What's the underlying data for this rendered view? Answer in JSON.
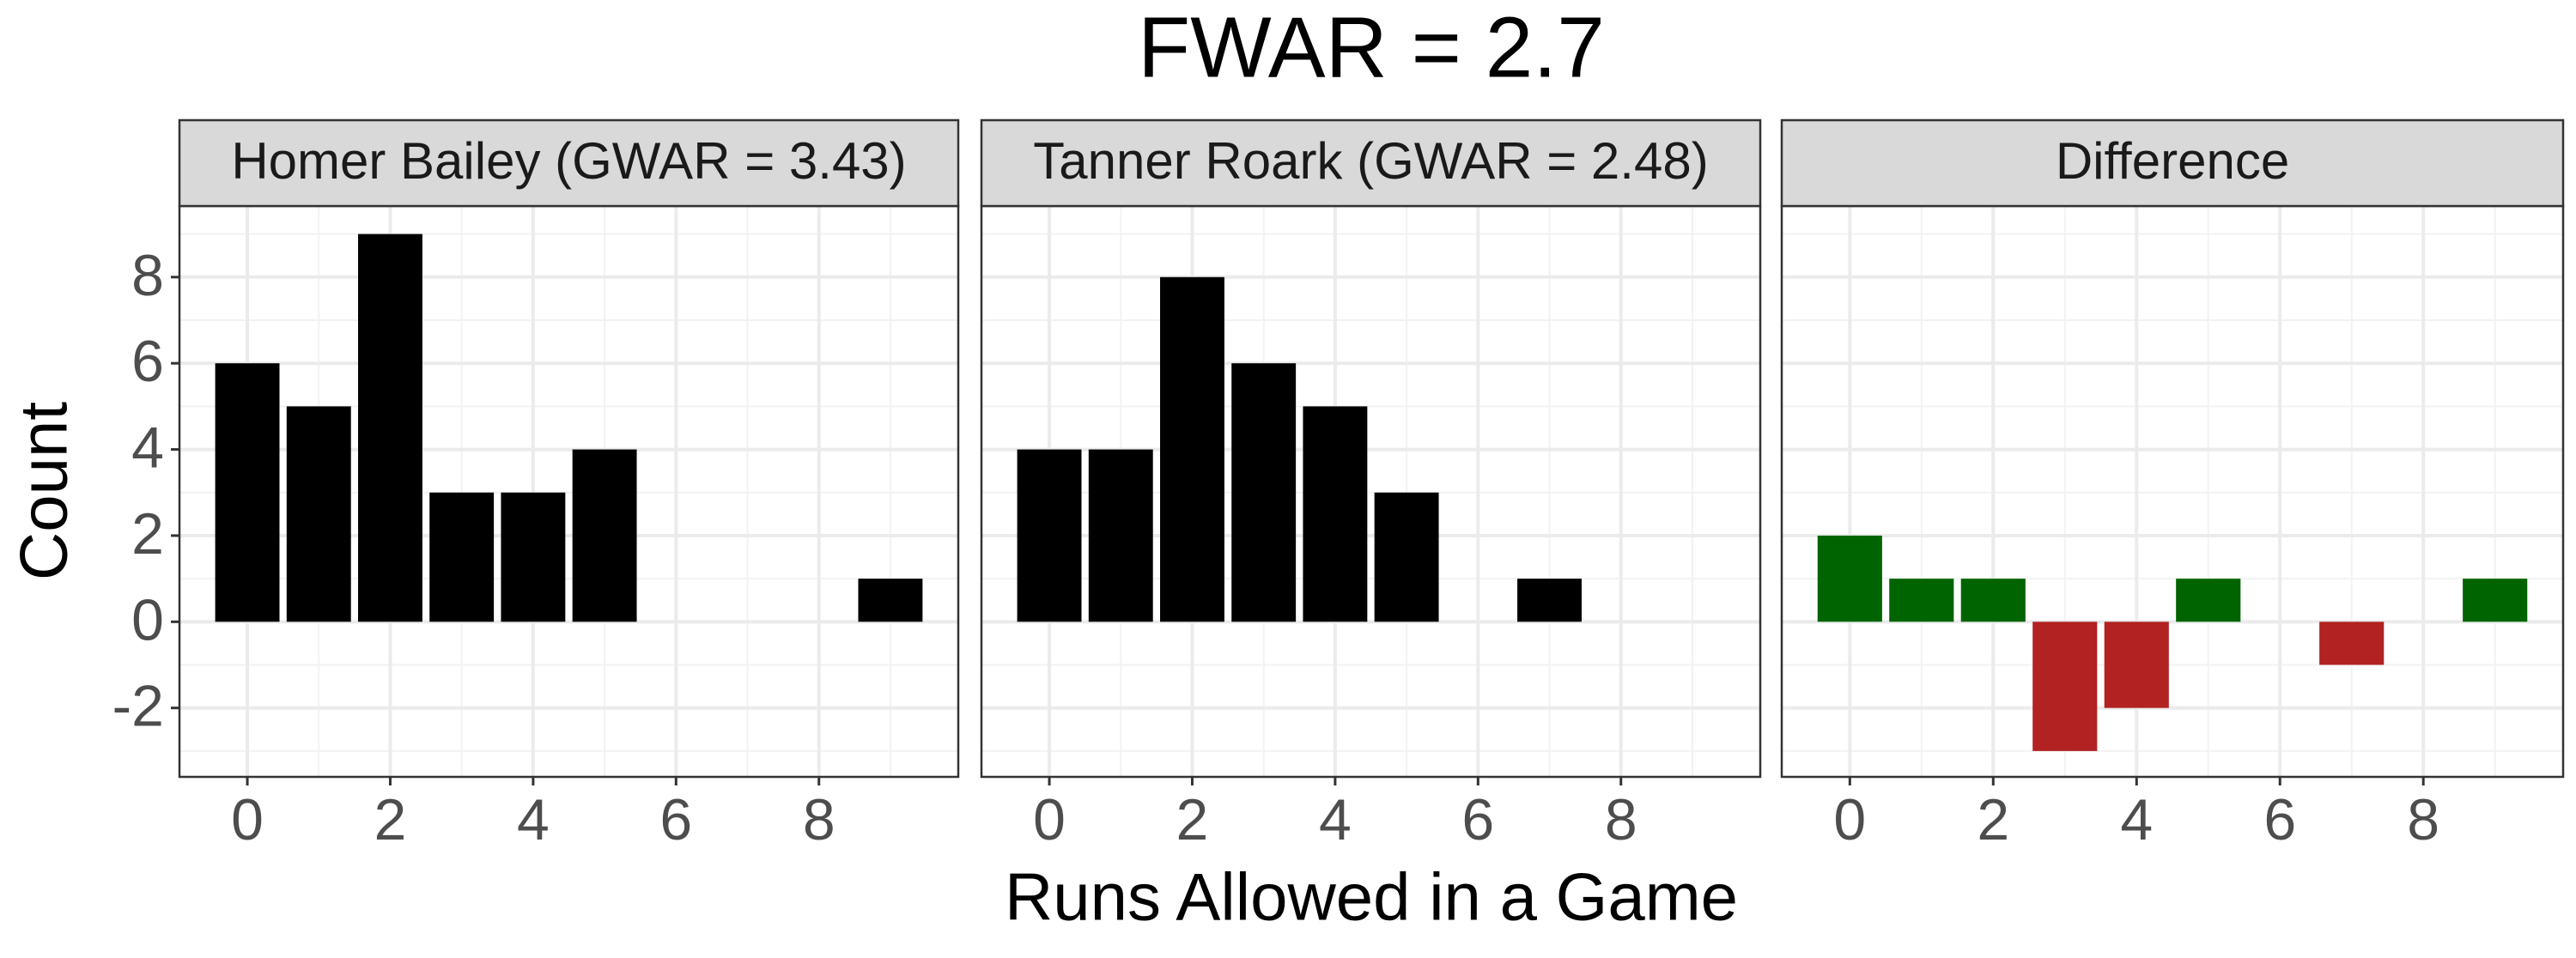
{
  "title": "FWAR = 2.7",
  "xlabel": "Runs Allowed in a Game",
  "ylabel": "Count",
  "chart_data": [
    {
      "type": "bar",
      "title": "Homer Bailey (GWAR = 3.43)",
      "x": [
        0,
        1,
        2,
        3,
        4,
        5,
        6,
        7,
        8,
        9
      ],
      "values": [
        6,
        5,
        9,
        3,
        3,
        4,
        0,
        0,
        0,
        1
      ],
      "color": "#000000",
      "xlim": [
        -0.95,
        9.95
      ],
      "ylim": [
        -3.6,
        9.65
      ],
      "xticks": [
        0,
        2,
        4,
        6,
        8
      ],
      "yticks": [
        -2,
        0,
        2,
        4,
        6,
        8
      ],
      "minor_xticks": [
        1,
        3,
        5,
        7,
        9
      ],
      "minor_yticks": [
        -3,
        -1,
        1,
        3,
        5,
        7,
        9
      ],
      "grid": true
    },
    {
      "type": "bar",
      "title": "Tanner Roark (GWAR = 2.48)",
      "x": [
        0,
        1,
        2,
        3,
        4,
        5,
        6,
        7,
        8,
        9
      ],
      "values": [
        4,
        4,
        8,
        6,
        5,
        3,
        0,
        1,
        0,
        0
      ],
      "color": "#000000",
      "xlim": [
        -0.95,
        9.95
      ],
      "ylim": [
        -3.6,
        9.65
      ],
      "xticks": [
        0,
        2,
        4,
        6,
        8
      ],
      "yticks": [
        -2,
        0,
        2,
        4,
        6,
        8
      ],
      "minor_xticks": [
        1,
        3,
        5,
        7,
        9
      ],
      "minor_yticks": [
        -3,
        -1,
        1,
        3,
        5,
        7,
        9
      ],
      "grid": true
    },
    {
      "type": "bar",
      "title": "Difference",
      "x": [
        0,
        1,
        2,
        3,
        4,
        5,
        6,
        7,
        8,
        9
      ],
      "values": [
        2,
        1,
        1,
        -3,
        -2,
        1,
        0,
        -1,
        0,
        1
      ],
      "colors": [
        "#006400",
        "#006400",
        "#006400",
        "#b22222",
        "#b22222",
        "#006400",
        "#006400",
        "#b22222",
        "#006400",
        "#006400"
      ],
      "xlim": [
        -0.95,
        9.95
      ],
      "ylim": [
        -3.6,
        9.65
      ],
      "xticks": [
        0,
        2,
        4,
        6,
        8
      ],
      "yticks": [
        -2,
        0,
        2,
        4,
        6,
        8
      ],
      "minor_xticks": [
        1,
        3,
        5,
        7,
        9
      ],
      "minor_yticks": [
        -3,
        -1,
        1,
        3,
        5,
        7,
        9
      ],
      "grid": true
    }
  ]
}
